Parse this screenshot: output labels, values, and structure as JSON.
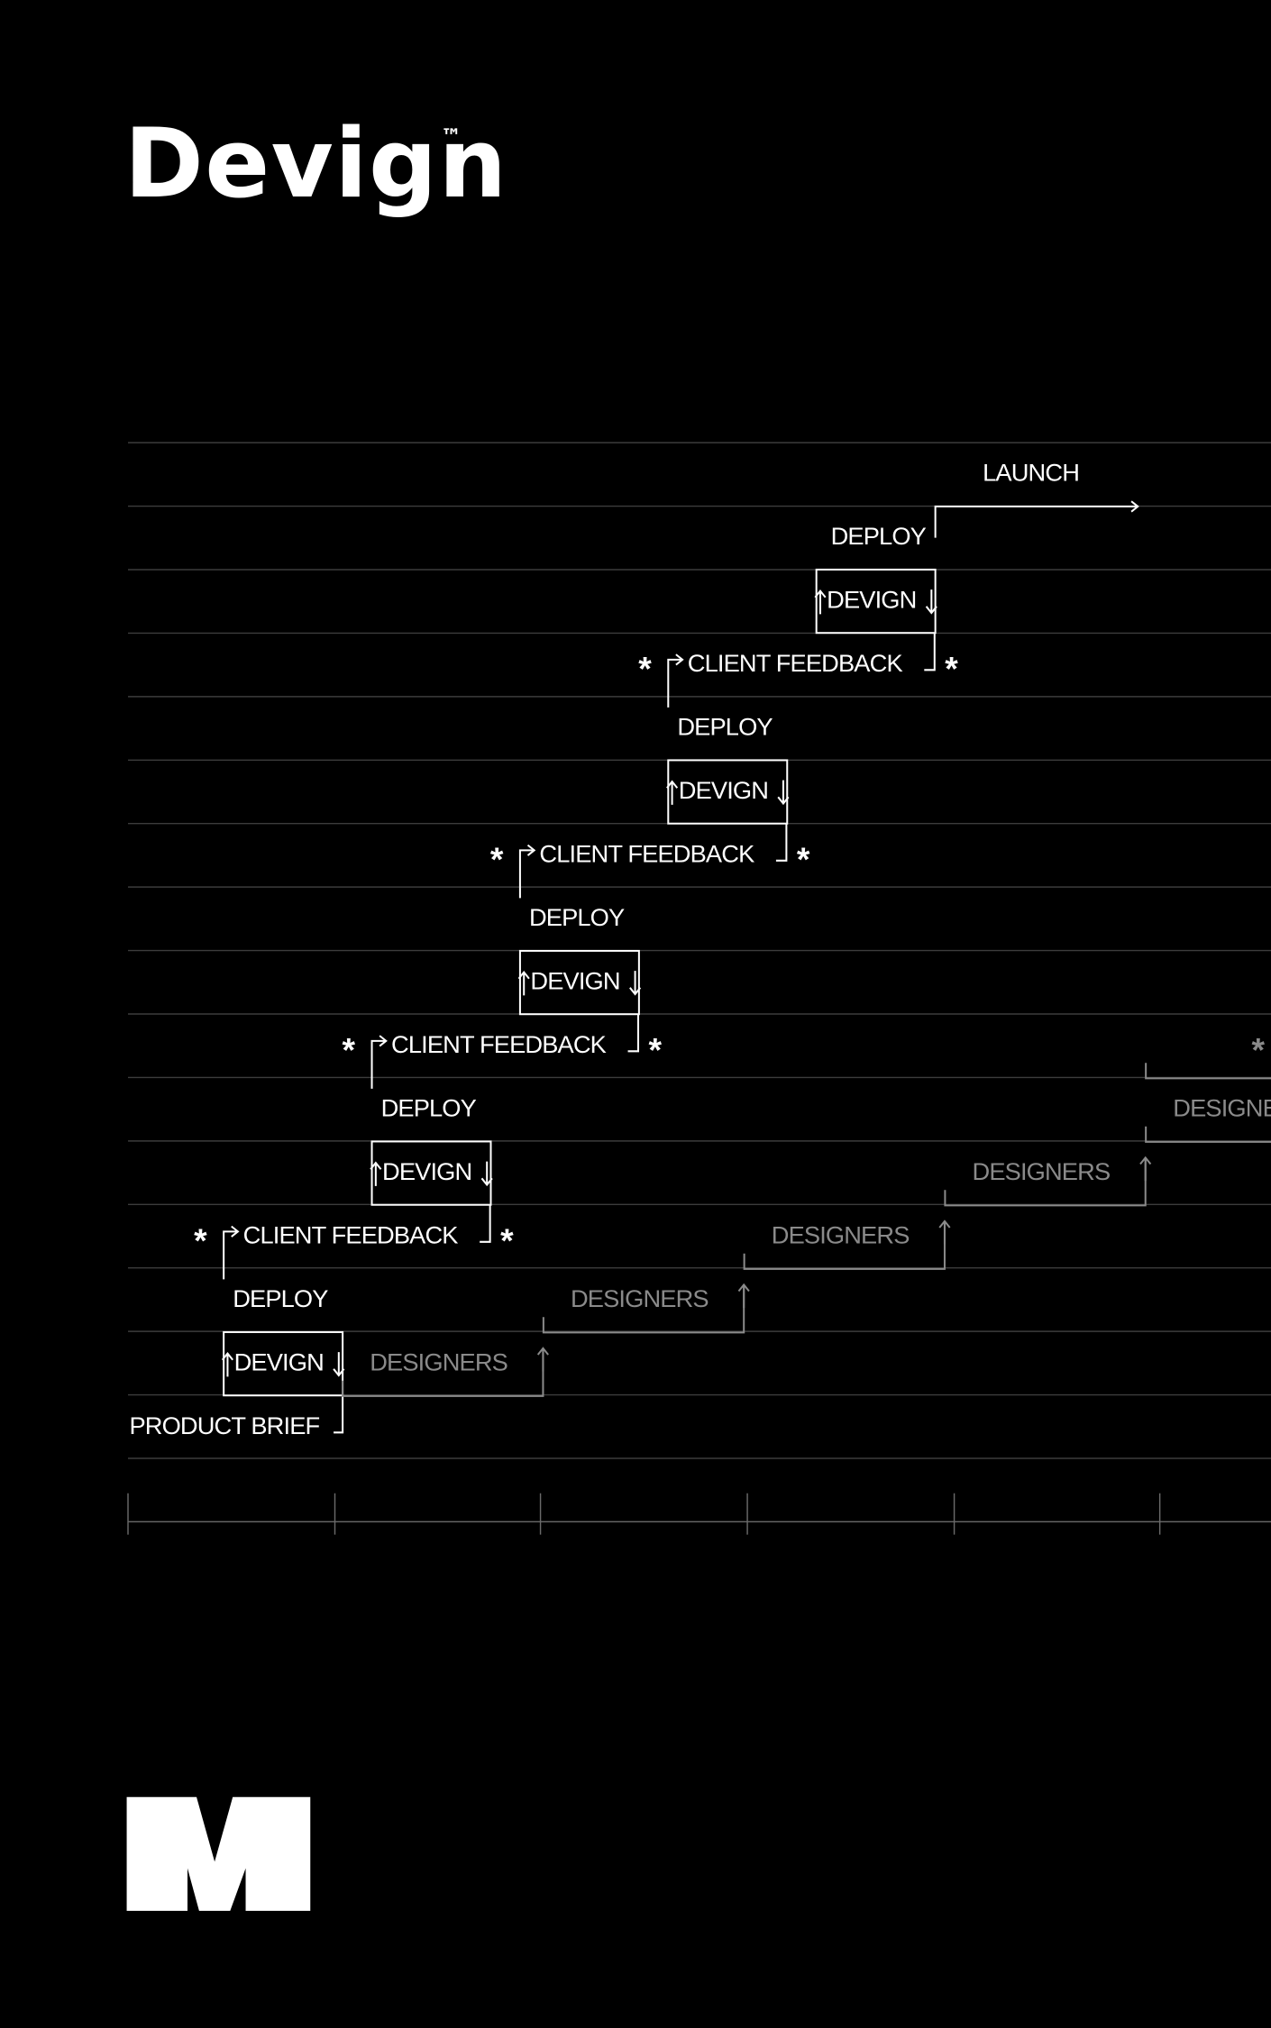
{
  "logo": {
    "name": "Devign",
    "mark": "™"
  },
  "flow": {
    "start": "PRODUCT BRIEF",
    "cycles": [
      {
        "devign": "DEVIGN",
        "deploy": "DEPLOY",
        "feedback": "CLIENT FEEDBACK"
      },
      {
        "devign": "DEVIGN",
        "deploy": "DEPLOY",
        "feedback": "CLIENT FEEDBACK"
      },
      {
        "devign": "DEVIGN",
        "deploy": "DEPLOY",
        "feedback": "CLIENT FEEDBACK"
      },
      {
        "devign": "DEVIGN",
        "deploy": "DEPLOY",
        "feedback": "CLIENT FEEDBACK"
      },
      {
        "devign": "DEVIGN",
        "deploy": "DEPLOY"
      }
    ],
    "end": "LAUNCH"
  },
  "designers": [
    "DESIGNERS",
    "DESIGNERS",
    "DESIGNERS",
    "DESIGNERS",
    "DESIGNERS"
  ],
  "asterisk": "*"
}
